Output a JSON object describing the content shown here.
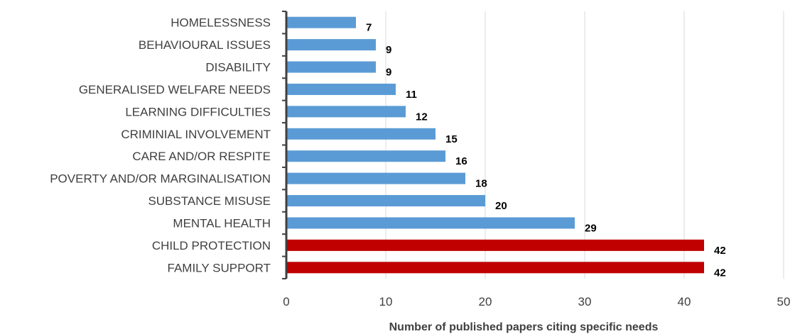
{
  "chart_data": {
    "type": "bar",
    "orientation": "horizontal",
    "categories": [
      "HOMELESSNESS",
      "BEHAVIOURAL ISSUES",
      "DISABILITY",
      "GENERALISED WELFARE NEEDS",
      "LEARNING DIFFICULTIES",
      "CRIMINIAL INVOLVEMENT",
      "CARE AND/OR RESPITE",
      "POVERTY AND/OR MARGINALISATION",
      "SUBSTANCE MISUSE",
      "MENTAL HEALTH",
      "CHILD PROTECTION",
      "FAMILY SUPPORT"
    ],
    "values": [
      7,
      9,
      9,
      11,
      12,
      15,
      16,
      18,
      20,
      29,
      42,
      42
    ],
    "bar_colors": [
      "#5b9bd5",
      "#5b9bd5",
      "#5b9bd5",
      "#5b9bd5",
      "#5b9bd5",
      "#5b9bd5",
      "#5b9bd5",
      "#5b9bd5",
      "#5b9bd5",
      "#5b9bd5",
      "#c00000",
      "#c00000"
    ],
    "xlabel": "Number of published papers citing specific needs",
    "xlim": [
      0,
      50
    ],
    "xticks": [
      0,
      10,
      20,
      30,
      40,
      50
    ],
    "grid": "vertical",
    "legend": "none"
  }
}
